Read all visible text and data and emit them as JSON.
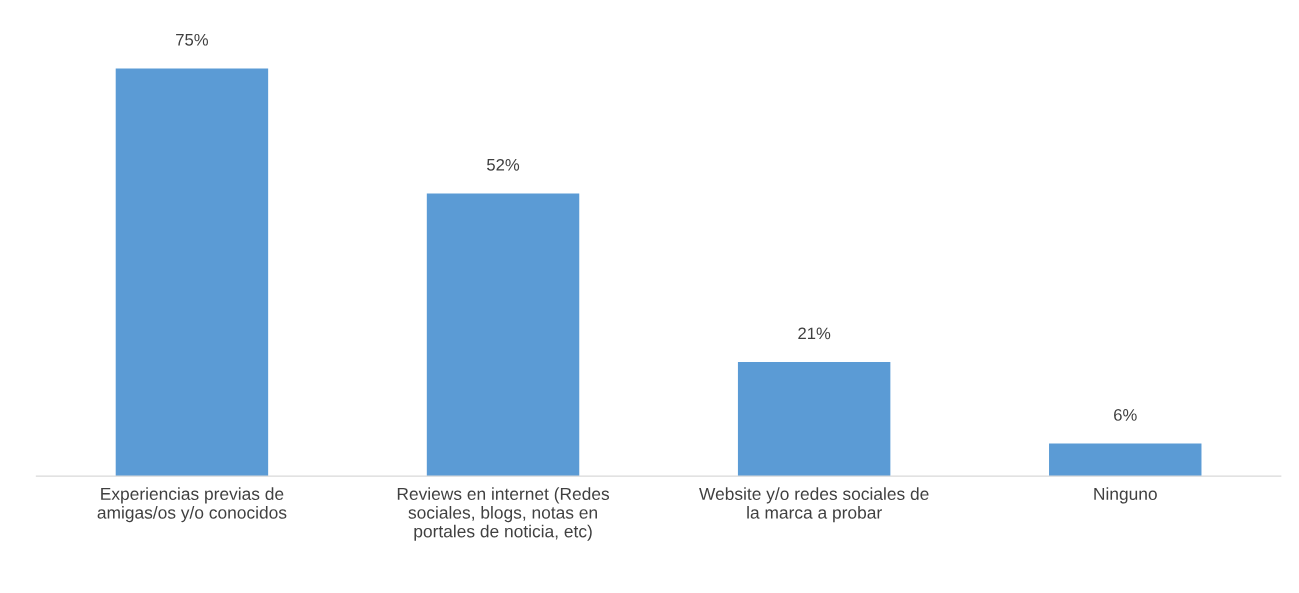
{
  "chart_data": {
    "type": "bar",
    "categories": [
      "Experiencias previas de amigas/os y/o conocidos",
      "Reviews en internet (Redes sociales, blogs, notas en portales de noticia, etc)",
      "Website y/o redes sociales de la marca a probar",
      "Ninguno"
    ],
    "values": [
      75,
      52,
      21,
      6
    ],
    "value_labels": [
      "75%",
      "52%",
      "21%",
      "6%"
    ],
    "color": "#5b9bd5",
    "grid": false,
    "legend": false,
    "tick_labels": "x"
  }
}
